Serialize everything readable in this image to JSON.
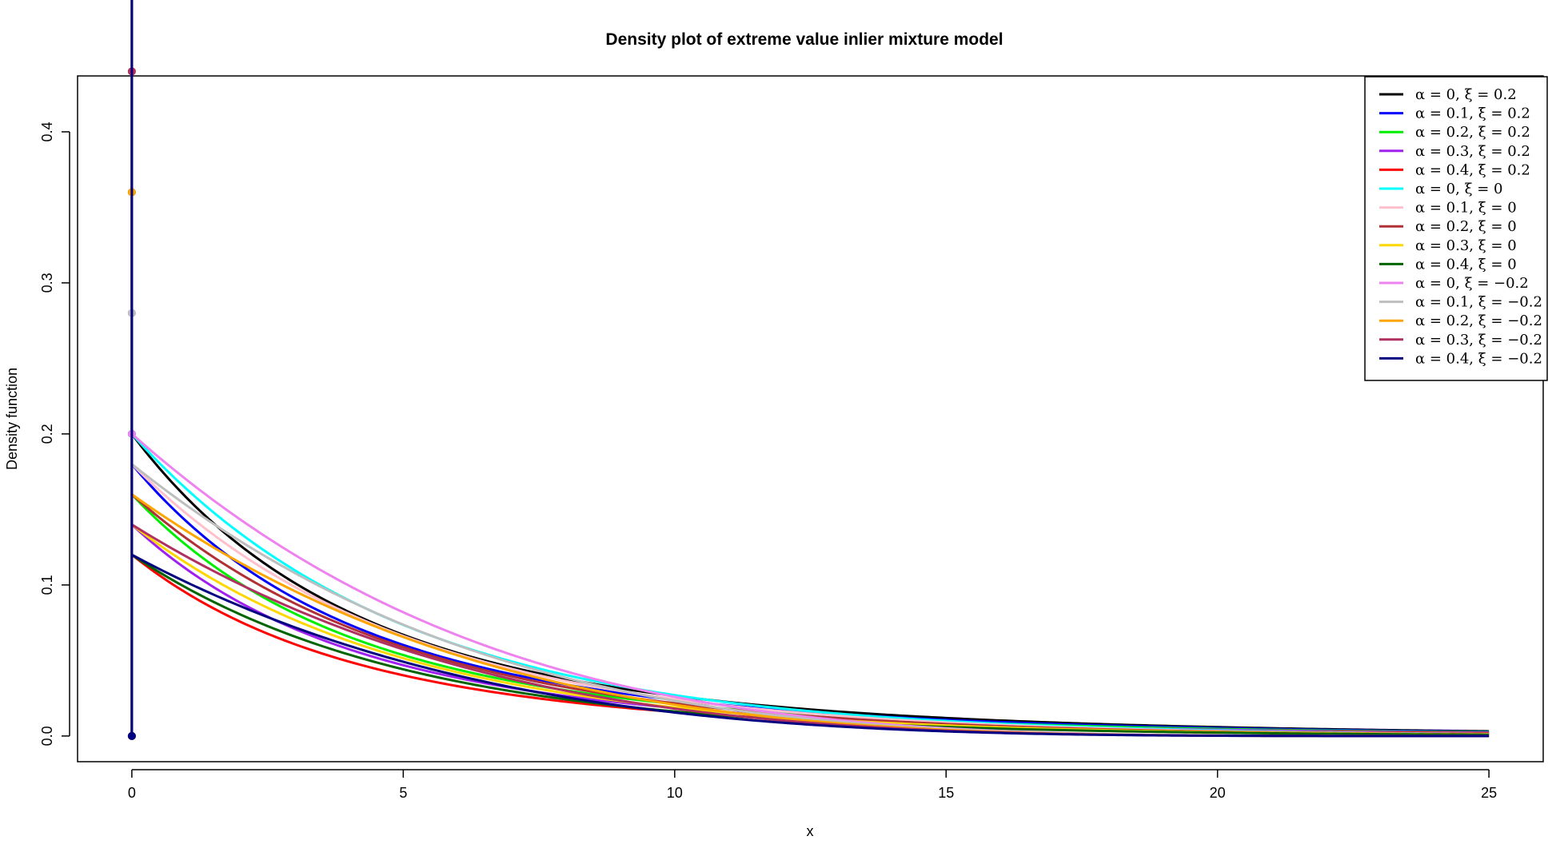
{
  "chart_data": {
    "type": "line",
    "title": "Density plot of extreme value inlier mixture model",
    "xlabel": "x",
    "ylabel": "Density function",
    "xlim": [
      -1,
      26
    ],
    "ylim": [
      -0.017,
      0.437
    ],
    "xticks": [
      0,
      5,
      10,
      15,
      20,
      25
    ],
    "yticks": [
      0.0,
      0.1,
      0.2,
      0.3,
      0.4
    ],
    "xtick_labels": [
      "0",
      "5",
      "10",
      "15",
      "20",
      "25"
    ],
    "ytick_labels": [
      "0.0",
      "0.1",
      "0.2",
      "0.3",
      "0.4"
    ],
    "grid": false,
    "legend_position": "top-right",
    "x_range": [
      0,
      25
    ],
    "series": [
      {
        "name": "α = 0,  ξ = 0.2",
        "color": "#000000",
        "alpha": 0,
        "xi": 0.2
      },
      {
        "name": "α = 0.1,  ξ = 0.2",
        "color": "#0000ff",
        "alpha": 0.1,
        "xi": 0.2
      },
      {
        "name": "α = 0.2,  ξ = 0.2",
        "color": "#00ee00",
        "alpha": 0.2,
        "xi": 0.2
      },
      {
        "name": "α = 0.3,  ξ = 0.2",
        "color": "#a020f0",
        "alpha": 0.3,
        "xi": 0.2
      },
      {
        "name": "α = 0.4,  ξ = 0.2",
        "color": "#ff0000",
        "alpha": 0.4,
        "xi": 0.2
      },
      {
        "name": "α = 0,  ξ = 0",
        "color": "#00ffff",
        "alpha": 0,
        "xi": 0
      },
      {
        "name": "α = 0.1,  ξ = 0",
        "color": "#ffc0cb",
        "alpha": 0.1,
        "xi": 0
      },
      {
        "name": "α = 0.2,  ξ = 0",
        "color": "#b03035",
        "alpha": 0.2,
        "xi": 0
      },
      {
        "name": "α = 0.3,  ξ = 0",
        "color": "#ffd700",
        "alpha": 0.3,
        "xi": 0
      },
      {
        "name": "α = 0.4,  ξ = 0",
        "color": "#006400",
        "alpha": 0.4,
        "xi": 0
      },
      {
        "name": "α = 0,  ξ = −0.2",
        "color": "#ee82ee",
        "alpha": 0,
        "xi": -0.2
      },
      {
        "name": "α = 0.1,  ξ = −0.2",
        "color": "#bebebe",
        "alpha": 0.1,
        "xi": -0.2
      },
      {
        "name": "α = 0.2,  ξ = −0.2",
        "color": "#ffa500",
        "alpha": 0.2,
        "xi": -0.2
      },
      {
        "name": "α = 0.3,  ξ = −0.2",
        "color": "#b03060",
        "alpha": 0.3,
        "xi": -0.2
      },
      {
        "name": "α = 0.4,  ξ = −0.2",
        "color": "#000080",
        "alpha": 0.4,
        "xi": -0.2
      }
    ]
  }
}
